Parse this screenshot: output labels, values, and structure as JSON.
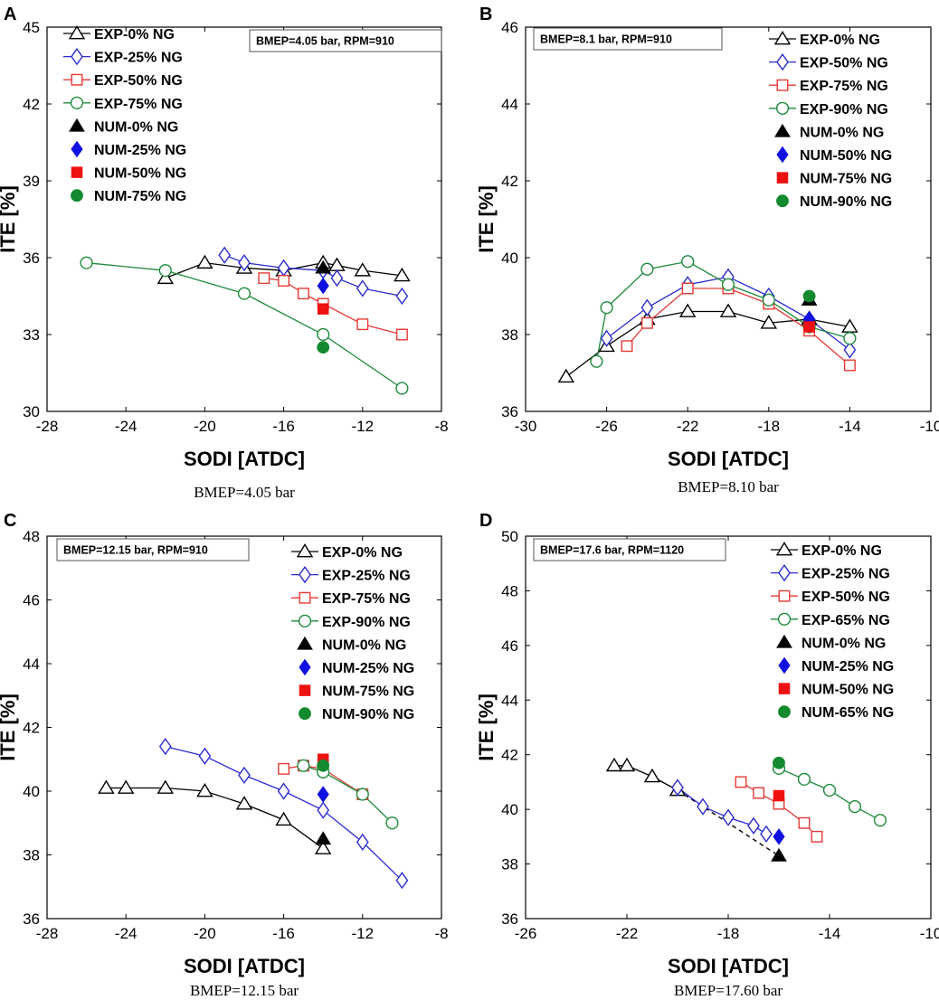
{
  "chart_data": [
    {
      "type": "line",
      "panel": "A",
      "caption": "BMEP=4.05 bar",
      "note": "BMEP=4.05 bar, RPM=910",
      "xlabel": "SODI [ATDC]",
      "ylabel": "ITE [%]",
      "xlim": [
        -28,
        -8
      ],
      "ylim": [
        30,
        45
      ],
      "xticks": [
        -28,
        -24,
        -20,
        -16,
        -12,
        -8
      ],
      "yticks": [
        30,
        33,
        36,
        39,
        42,
        45
      ],
      "legend_position": "top-left",
      "series": [
        {
          "name": "EXP-0% NG",
          "marker": "triangle-open",
          "color": "#000000",
          "x": [
            -22,
            -20,
            -18,
            -16,
            -14,
            -13.3,
            -12,
            -10
          ],
          "y": [
            35.2,
            35.8,
            35.6,
            35.5,
            35.8,
            35.7,
            35.5,
            35.3
          ]
        },
        {
          "name": "EXP-25% NG",
          "marker": "diamond-open",
          "color": "#2b2bd0",
          "x": [
            -19,
            -18,
            -16,
            -14,
            -13.3,
            -12,
            -10
          ],
          "y": [
            36.1,
            35.8,
            35.6,
            35.5,
            35.2,
            34.8,
            34.5
          ]
        },
        {
          "name": "EXP-50% NG",
          "marker": "square-open",
          "color": "#e53935",
          "x": [
            -17,
            -16,
            -15,
            -14,
            -12,
            -10
          ],
          "y": [
            35.2,
            35.1,
            34.6,
            34.2,
            33.4,
            33.0
          ]
        },
        {
          "name": "EXP-75% NG",
          "marker": "circle-open",
          "color": "#1e8a3c",
          "x": [
            -26,
            -22,
            -18,
            -14,
            -10
          ],
          "y": [
            35.8,
            35.5,
            34.6,
            33.0,
            30.9
          ]
        },
        {
          "name": "NUM-0% NG",
          "marker": "triangle-filled",
          "color": "#000000",
          "x": [
            -14
          ],
          "y": [
            35.6
          ]
        },
        {
          "name": "NUM-25% NG",
          "marker": "diamond-filled",
          "color": "#1010e0",
          "x": [
            -14
          ],
          "y": [
            34.9
          ]
        },
        {
          "name": "NUM-50% NG",
          "marker": "square-filled",
          "color": "#ee1111",
          "x": [
            -14
          ],
          "y": [
            34.0
          ]
        },
        {
          "name": "NUM-75% NG",
          "marker": "circle-filled",
          "color": "#138a2e",
          "x": [
            -14
          ],
          "y": [
            32.5
          ]
        }
      ]
    },
    {
      "type": "line",
      "panel": "B",
      "caption": "BMEP=8.10 bar",
      "note": "BMEP=8.1 bar, RPM=910",
      "xlabel": "SODI [ATDC]",
      "ylabel": "ITE [%]",
      "xlim": [
        -30,
        -10
      ],
      "ylim": [
        36,
        46
      ],
      "xticks": [
        -30,
        -26,
        -22,
        -18,
        -14,
        -10
      ],
      "yticks": [
        36,
        38,
        40,
        42,
        44,
        46
      ],
      "legend_position": "top-right",
      "series": [
        {
          "name": "EXP-0% NG",
          "marker": "triangle-open",
          "color": "#000000",
          "x": [
            -28,
            -26,
            -24,
            -22,
            -20,
            -18,
            -16,
            -14
          ],
          "y": [
            36.9,
            37.7,
            38.4,
            38.6,
            38.6,
            38.3,
            38.4,
            38.2
          ]
        },
        {
          "name": "EXP-50% NG",
          "marker": "diamond-open",
          "color": "#2b2bd0",
          "x": [
            -26,
            -24,
            -22,
            -20,
            -18,
            -16,
            -14
          ],
          "y": [
            37.9,
            38.7,
            39.3,
            39.5,
            39.0,
            38.4,
            37.6
          ]
        },
        {
          "name": "EXP-75% NG",
          "marker": "square-open",
          "color": "#e53935",
          "x": [
            -25,
            -24,
            -22,
            -20,
            -18,
            -16,
            -14
          ],
          "y": [
            37.7,
            38.3,
            39.2,
            39.2,
            38.8,
            38.1,
            37.2
          ]
        },
        {
          "name": "EXP-90% NG",
          "marker": "circle-open",
          "color": "#1e8a3c",
          "x": [
            -26.5,
            -26,
            -24,
            -22,
            -20,
            -18,
            -16,
            -14
          ],
          "y": [
            37.3,
            38.7,
            39.7,
            39.9,
            39.3,
            38.9,
            38.2,
            37.9
          ]
        },
        {
          "name": "NUM-0% NG",
          "marker": "triangle-filled",
          "color": "#000000",
          "x": [
            -16
          ],
          "y": [
            38.9
          ]
        },
        {
          "name": "NUM-50% NG",
          "marker": "diamond-filled",
          "color": "#1010e0",
          "x": [
            -16
          ],
          "y": [
            38.4
          ]
        },
        {
          "name": "NUM-75% NG",
          "marker": "square-filled",
          "color": "#ee1111",
          "x": [
            -16
          ],
          "y": [
            38.2
          ]
        },
        {
          "name": "NUM-90% NG",
          "marker": "circle-filled",
          "color": "#138a2e",
          "x": [
            -16
          ],
          "y": [
            39.0
          ]
        }
      ]
    },
    {
      "type": "line",
      "panel": "C",
      "caption": "BMEP=12.15 bar",
      "note": "BMEP=12.15 bar, RPM=910",
      "xlabel": "SODI [ATDC]",
      "ylabel": "ITE [%]",
      "xlim": [
        -28,
        -8
      ],
      "ylim": [
        36,
        48
      ],
      "xticks": [
        -28,
        -24,
        -20,
        -16,
        -12,
        -8
      ],
      "yticks": [
        36,
        38,
        40,
        42,
        44,
        46,
        48
      ],
      "legend_position": "top-right",
      "series": [
        {
          "name": "EXP-0% NG",
          "marker": "triangle-open",
          "color": "#000000",
          "x": [
            -25,
            -24,
            -22,
            -20,
            -18,
            -16,
            -14
          ],
          "y": [
            40.1,
            40.1,
            40.1,
            40.0,
            39.6,
            39.1,
            38.2
          ]
        },
        {
          "name": "EXP-25% NG",
          "marker": "diamond-open",
          "color": "#2b2bd0",
          "x": [
            -22,
            -20,
            -18,
            -16,
            -14,
            -12,
            -10
          ],
          "y": [
            41.4,
            41.1,
            40.5,
            40.0,
            39.4,
            38.4,
            37.2
          ]
        },
        {
          "name": "EXP-75% NG",
          "marker": "square-open",
          "color": "#e53935",
          "x": [
            -16,
            -15,
            -14,
            -12
          ],
          "y": [
            40.7,
            40.8,
            40.7,
            39.9
          ]
        },
        {
          "name": "EXP-90% NG",
          "marker": "circle-open",
          "color": "#1e8a3c",
          "x": [
            -15,
            -14,
            -12,
            -10.5
          ],
          "y": [
            40.8,
            40.6,
            39.9,
            39.0
          ]
        },
        {
          "name": "NUM-0% NG",
          "marker": "triangle-filled",
          "color": "#000000",
          "x": [
            -14
          ],
          "y": [
            38.5
          ]
        },
        {
          "name": "NUM-25% NG",
          "marker": "diamond-filled",
          "color": "#1010e0",
          "x": [
            -14
          ],
          "y": [
            39.9
          ]
        },
        {
          "name": "NUM-75% NG",
          "marker": "square-filled",
          "color": "#ee1111",
          "x": [
            -14
          ],
          "y": [
            41.0
          ]
        },
        {
          "name": "NUM-90% NG",
          "marker": "circle-filled",
          "color": "#138a2e",
          "x": [
            -14
          ],
          "y": [
            40.8
          ]
        }
      ]
    },
    {
      "type": "line",
      "panel": "D",
      "caption": "BMEP=17.60 bar",
      "note": "BMEP=17.6 bar, RPM=1120",
      "xlabel": "SODI [ATDC]",
      "ylabel": "ITE [%]",
      "xlim": [
        -26,
        -10
      ],
      "ylim": [
        36,
        50
      ],
      "xticks": [
        -26,
        -22,
        -18,
        -14,
        -10
      ],
      "yticks": [
        36,
        38,
        40,
        42,
        44,
        46,
        48,
        50
      ],
      "legend_position": "top-right",
      "series": [
        {
          "name": "EXP-0% NG",
          "marker": "triangle-open",
          "color": "#000000",
          "x": [
            -22.5,
            -22,
            -21,
            -20
          ],
          "y": [
            41.6,
            41.6,
            41.2,
            40.7
          ]
        },
        {
          "name": "EXP-25% NG",
          "marker": "diamond-open",
          "color": "#2b2bd0",
          "x": [
            -20,
            -19,
            -18,
            -17,
            -16.5
          ],
          "y": [
            40.8,
            40.1,
            39.7,
            39.4,
            39.1
          ]
        },
        {
          "name": "EXP-50% NG",
          "marker": "square-open",
          "color": "#e53935",
          "x": [
            -17.5,
            -16.8,
            -16,
            -15,
            -14.5
          ],
          "y": [
            41.0,
            40.6,
            40.2,
            39.5,
            39.0
          ]
        },
        {
          "name": "EXP-65% NG",
          "marker": "circle-open",
          "color": "#1e8a3c",
          "x": [
            -16,
            -15,
            -14,
            -13,
            -12
          ],
          "y": [
            41.5,
            41.1,
            40.7,
            40.1,
            39.6
          ]
        },
        {
          "name": "NUM-0% NG",
          "marker": "triangle-filled",
          "color": "#000000",
          "x": [
            -16
          ],
          "y": [
            38.3
          ]
        },
        {
          "name": "NUM-25% NG",
          "marker": "diamond-filled",
          "color": "#1010e0",
          "x": [
            -16
          ],
          "y": [
            39.0
          ]
        },
        {
          "name": "NUM-50% NG",
          "marker": "square-filled",
          "color": "#ee1111",
          "x": [
            -16
          ],
          "y": [
            40.5
          ]
        },
        {
          "name": "NUM-65% NG",
          "marker": "circle-filled",
          "color": "#138a2e",
          "x": [
            -16
          ],
          "y": [
            41.7
          ]
        }
      ],
      "dashed_lines": [
        {
          "color": "#000000",
          "x": [
            -20,
            -16
          ],
          "y": [
            40.7,
            38.3
          ]
        }
      ]
    }
  ]
}
